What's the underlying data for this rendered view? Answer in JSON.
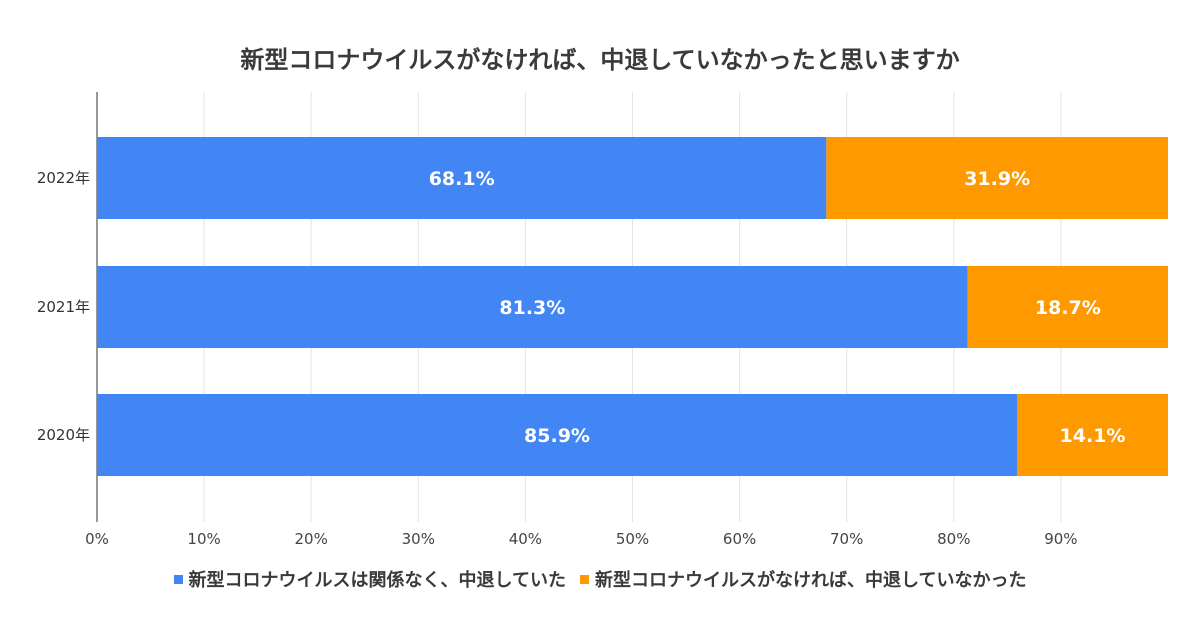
{
  "chart_data": {
    "type": "bar",
    "orientation": "horizontal",
    "stacked": true,
    "title": "新型コロナウイルスがなければ、中退していなかったと思いますか",
    "categories": [
      "2022年",
      "2021年",
      "2020年"
    ],
    "series": [
      {
        "name": "新型コロナウイルスは関係なく、中退していた",
        "color": "#4285f4",
        "values": [
          68.1,
          81.3,
          85.9
        ],
        "labels": [
          "68.1%",
          "81.3%",
          "85.9%"
        ]
      },
      {
        "name": "新型コロナウイルスがなければ、中退していなかった",
        "color": "#ff9900",
        "values": [
          31.9,
          18.7,
          14.1
        ],
        "labels": [
          "31.9%",
          "18.7%",
          "14.1%"
        ]
      }
    ],
    "xlim": [
      0,
      100
    ],
    "xticks": [
      "0%",
      "10%",
      "20%",
      "30%",
      "40%",
      "50%",
      "60%",
      "70%",
      "80%",
      "90%"
    ],
    "grid": true,
    "legend_position": "bottom"
  }
}
